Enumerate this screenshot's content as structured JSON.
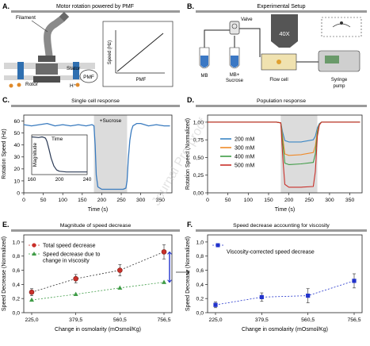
{
  "watermark": "Journal Pre-proof",
  "panels": {
    "A": {
      "letter": "A.",
      "title": "Motor rotation powered by PMF",
      "labels": {
        "filament": "Filament",
        "stator": "Stator",
        "rotor": "Rotor",
        "h_plus": "H⁺",
        "pmf": "PMF"
      },
      "inset": {
        "ylabel": "Speed (Hz)",
        "xlabel": "PMF"
      }
    },
    "B": {
      "letter": "B.",
      "title": "Experimental Setup",
      "labels": {
        "valve": "Valve",
        "objective": "40X",
        "mb": "MB",
        "mb_sucrose_1": "MB+",
        "mb_sucrose_2": "Sucrose",
        "flow_cell": "Flow cell",
        "syringe_1": "Syringe",
        "syringe_2": "pump"
      }
    }
  },
  "chart_data": [
    {
      "id": "C",
      "letter": "C.",
      "type": "line",
      "title": "Single cell response",
      "xlabel": "Time (s)",
      "ylabel": "Rotation Speed (Hz)",
      "xlim": [
        0,
        380
      ],
      "ylim": [
        0,
        65
      ],
      "xticks": [
        0,
        50,
        100,
        150,
        200,
        250,
        300,
        350
      ],
      "yticks": [
        0,
        10,
        20,
        30,
        40,
        50,
        60
      ],
      "shade": [
        180,
        265
      ],
      "annotation": "+Sucrose",
      "series": [
        {
          "color": "#3a7bbf",
          "x": [
            0,
            20,
            40,
            60,
            80,
            100,
            120,
            140,
            160,
            175,
            180,
            183,
            186,
            190,
            200,
            220,
            240,
            255,
            262,
            265,
            268,
            272,
            276,
            280,
            290,
            300,
            320,
            340,
            360,
            375
          ],
          "y": [
            57,
            56,
            57,
            58,
            56,
            57,
            56,
            57,
            56,
            57,
            56,
            40,
            15,
            5,
            3,
            3,
            3,
            3,
            4,
            10,
            28,
            44,
            52,
            56,
            58,
            58,
            56,
            57,
            56,
            56
          ]
        }
      ],
      "inset": {
        "xlabel": "Time",
        "ylabel": "Magnitude",
        "xlim": [
          160,
          240
        ],
        "ylim": [
          0,
          60
        ],
        "xticks": [
          160,
          200,
          240
        ],
        "x": [
          160,
          170,
          175,
          178,
          180,
          182,
          185,
          188,
          192,
          196,
          200,
          210,
          220,
          230,
          240
        ],
        "y": [
          57,
          56,
          57,
          56,
          55,
          50,
          38,
          25,
          13,
          7,
          5,
          4,
          4,
          4,
          4
        ]
      }
    },
    {
      "id": "D",
      "letter": "D.",
      "type": "line",
      "title": "Population response",
      "xlabel": "Time (s)",
      "ylabel": "Rotation Speed (Normalized)",
      "xlim": [
        0,
        380
      ],
      "ylim": [
        0,
        1.1
      ],
      "xticks": [
        0,
        50,
        100,
        150,
        200,
        250,
        300,
        350
      ],
      "yticks": [
        "0,00",
        "0,25",
        "0,50",
        "0,75",
        "1,00"
      ],
      "ytick_values": [
        0,
        0.25,
        0.5,
        0.75,
        1.0
      ],
      "shade": [
        180,
        270
      ],
      "series": [
        {
          "name": "200 mM",
          "color": "#3a86c4",
          "x": [
            0,
            170,
            180,
            185,
            190,
            200,
            230,
            260,
            265,
            270,
            275,
            280,
            300,
            350,
            375
          ],
          "y": [
            1.0,
            1.0,
            0.99,
            0.85,
            0.74,
            0.72,
            0.72,
            0.75,
            0.8,
            0.92,
            0.98,
            1.0,
            1.0,
            1.0,
            1.0
          ]
        },
        {
          "name": "300 mM",
          "color": "#ef8a2a",
          "x": [
            0,
            170,
            180,
            185,
            190,
            200,
            230,
            260,
            265,
            270,
            275,
            280,
            300,
            350,
            375
          ],
          "y": [
            1.0,
            1.0,
            0.99,
            0.78,
            0.55,
            0.53,
            0.54,
            0.57,
            0.66,
            0.88,
            0.97,
            1.0,
            1.0,
            1.0,
            1.0
          ]
        },
        {
          "name": "400 mM",
          "color": "#3f9c46",
          "x": [
            0,
            170,
            180,
            185,
            190,
            200,
            230,
            260,
            265,
            270,
            275,
            280,
            300,
            350,
            375
          ],
          "y": [
            1.0,
            1.0,
            0.99,
            0.7,
            0.42,
            0.4,
            0.41,
            0.43,
            0.55,
            0.85,
            0.97,
            1.0,
            1.0,
            1.0,
            1.0
          ]
        },
        {
          "name": "500 mM",
          "color": "#c9302a",
          "x": [
            0,
            170,
            180,
            185,
            190,
            200,
            230,
            260,
            265,
            270,
            275,
            280,
            300,
            350,
            375
          ],
          "y": [
            1.0,
            1.0,
            0.99,
            0.5,
            0.12,
            0.08,
            0.08,
            0.09,
            0.3,
            0.8,
            0.96,
            1.0,
            1.0,
            1.0,
            1.0
          ]
        }
      ]
    },
    {
      "id": "E",
      "letter": "E.",
      "type": "scatter",
      "title": "Magnitude of speed decrease",
      "xlabel": "Change in osmolarity (mOsmol/Kg)",
      "ylabel": "Speed Decrease (Normalized)",
      "categories": [
        "225,0",
        "379,5",
        "560,5",
        "756,5"
      ],
      "ylim": [
        0,
        1.1
      ],
      "yticks": [
        "0,0",
        "0,2",
        "0,4",
        "0,6",
        "0,8",
        "1,0"
      ],
      "ytick_values": [
        0,
        0.2,
        0.4,
        0.6,
        0.8,
        1.0
      ],
      "series": [
        {
          "name": "Total speed decrease",
          "color": "#c9302a",
          "marker": "circle",
          "values": [
            0.29,
            0.48,
            0.6,
            0.86
          ],
          "err": [
            0.05,
            0.06,
            0.08,
            0.1
          ]
        },
        {
          "name": "Speed decrease due to change in viscosity",
          "color": "#3f9c46",
          "marker": "triangle",
          "values": [
            0.18,
            0.26,
            0.35,
            0.43
          ],
          "err": [
            0,
            0,
            0,
            0
          ]
        }
      ]
    },
    {
      "id": "F",
      "letter": "F.",
      "type": "scatter",
      "title": "Speed decrease accounting for viscosity",
      "xlabel": "Change in osmolarity (mOsmol/Kg)",
      "ylabel": "Speed Decrease (Normalized)",
      "categories": [
        "225,0",
        "379,5",
        "560,5",
        "756,5"
      ],
      "ylim": [
        0,
        1.1
      ],
      "yticks": [
        "0,0",
        "0,2",
        "0,4",
        "0,6",
        "0,8",
        "1,0"
      ],
      "ytick_values": [
        0,
        0.2,
        0.4,
        0.6,
        0.8,
        1.0
      ],
      "series": [
        {
          "name": "Viscosity-corrected speed decrease",
          "color": "#2233cc",
          "marker": "square",
          "values": [
            0.11,
            0.22,
            0.24,
            0.45
          ],
          "err": [
            0.04,
            0.06,
            0.1,
            0.1
          ]
        }
      ]
    }
  ]
}
